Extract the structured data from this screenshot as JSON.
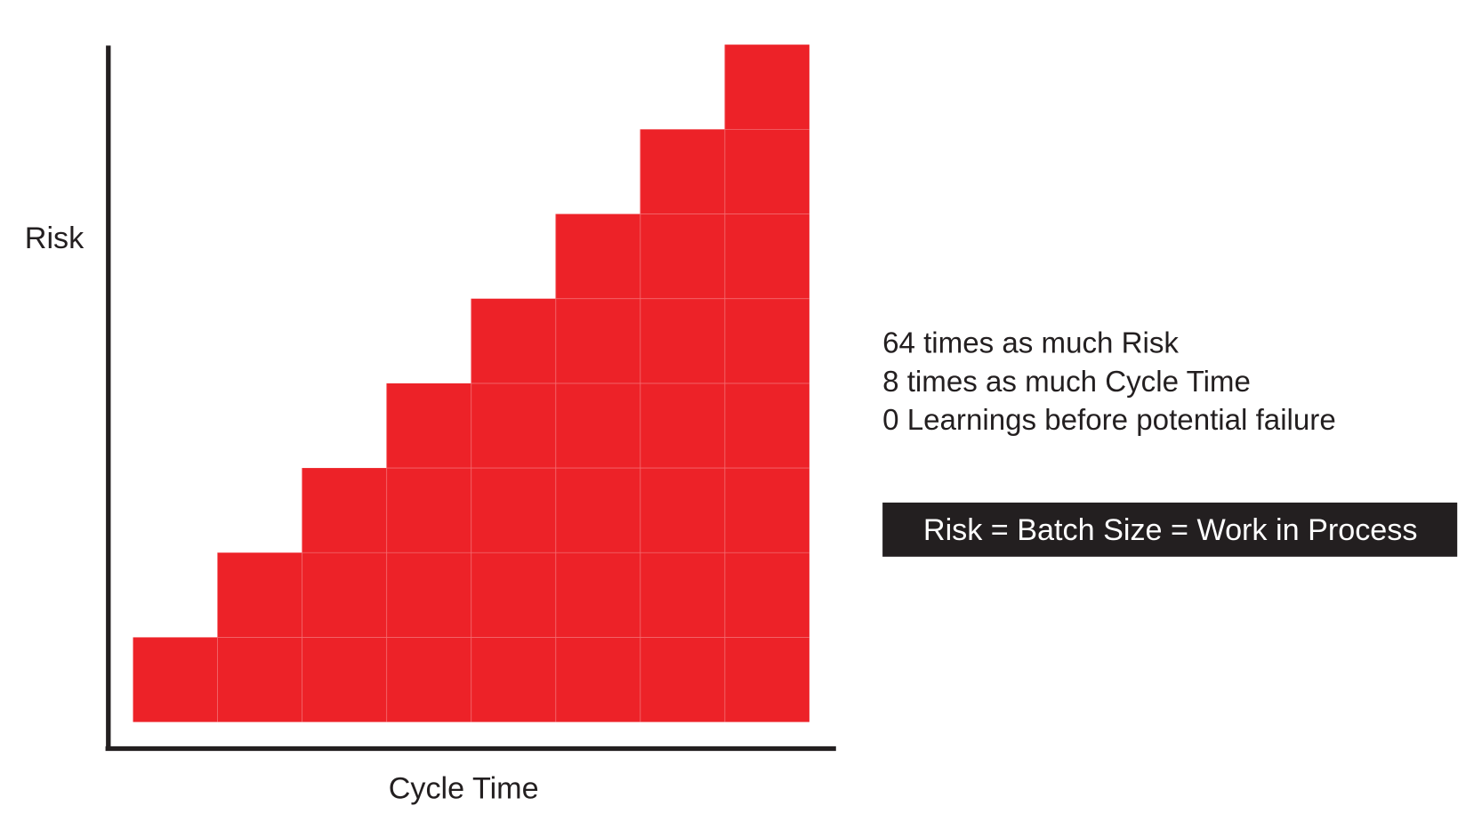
{
  "chart_data": {
    "type": "bar",
    "y_label": "Risk",
    "x_label": "Cycle Time",
    "categories": [
      null,
      null,
      null,
      null,
      null,
      null,
      null,
      null
    ],
    "values": [
      1,
      2,
      3,
      4,
      5,
      6,
      7,
      8
    ],
    "color": "#ed2228",
    "ylim": [
      0,
      8
    ],
    "annotations": [
      "64 times as much Risk",
      "8 times as much Cycle Time",
      "0 Learnings before potential failure"
    ],
    "callout": "Risk = Batch Size = Work in Process"
  }
}
